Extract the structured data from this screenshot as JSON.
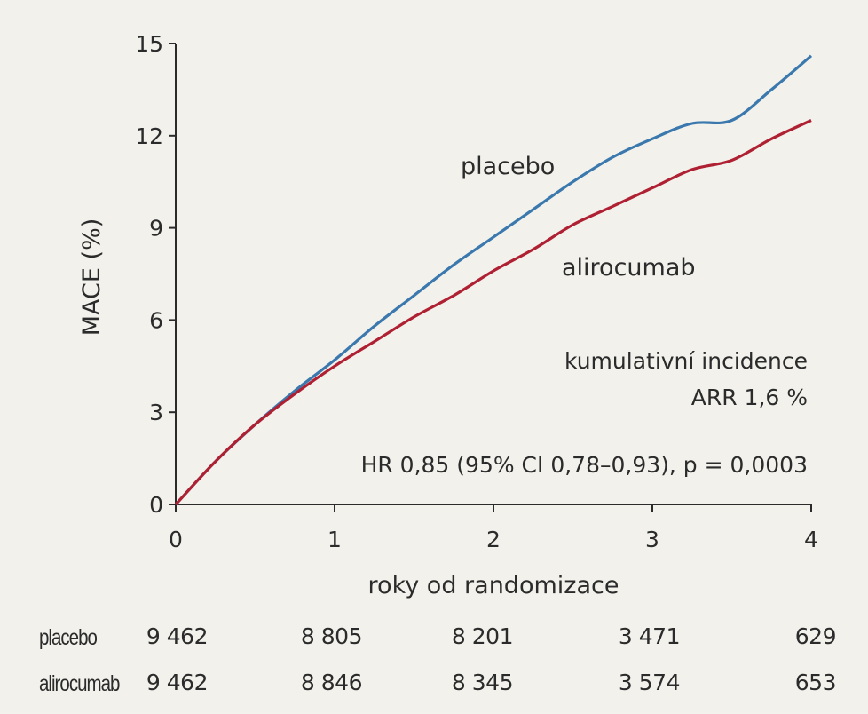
{
  "colors": {
    "background": "#f2f1ec",
    "placebo": "#3a78ad",
    "alirocumab": "#ae2032",
    "axis": "#2b2b2b"
  },
  "chart_data": {
    "type": "line",
    "xlabel": "roky od randomizace",
    "ylabel": "MACE (%)",
    "xlim": [
      0,
      4
    ],
    "ylim": [
      0,
      15
    ],
    "xticks": [
      0,
      1,
      2,
      3,
      4
    ],
    "yticks": [
      0,
      3,
      6,
      9,
      12,
      15
    ],
    "grid": false,
    "series": [
      {
        "name": "placebo",
        "x": [
          0,
          0.25,
          0.5,
          0.75,
          1,
          1.25,
          1.5,
          1.75,
          2,
          2.25,
          2.5,
          2.75,
          3,
          3.25,
          3.5,
          3.75,
          4
        ],
        "y": [
          0,
          1.4,
          2.6,
          3.7,
          4.7,
          5.8,
          6.8,
          7.8,
          8.7,
          9.6,
          10.5,
          11.3,
          11.9,
          12.4,
          12.5,
          13.5,
          14.6
        ]
      },
      {
        "name": "alirocumab",
        "x": [
          0,
          0.25,
          0.5,
          0.75,
          1,
          1.25,
          1.5,
          1.75,
          2,
          2.25,
          2.5,
          2.75,
          3,
          3.25,
          3.5,
          3.75,
          4
        ],
        "y": [
          0,
          1.4,
          2.6,
          3.6,
          4.5,
          5.3,
          6.1,
          6.8,
          7.6,
          8.3,
          9.1,
          9.7,
          10.3,
          10.9,
          11.2,
          11.9,
          12.5
        ]
      }
    ],
    "annotations": {
      "incidence": "kumulativní incidence",
      "arr": "ARR 1,6 %",
      "hr": "HR 0,85 (95% CI 0,78–0,93), p = 0,0003"
    },
    "tick_labels_y": [
      "0",
      "3",
      "6",
      "9",
      "12",
      "15"
    ],
    "tick_labels_x": [
      "0",
      "1",
      "2",
      "3",
      "4"
    ]
  },
  "risk_table": {
    "rows": [
      {
        "name": "placebo",
        "values": [
          "9 462",
          "8 805",
          "8 201",
          "3 471",
          "629"
        ]
      },
      {
        "name": "alirocumab",
        "values": [
          "9 462",
          "8 846",
          "8 345",
          "3 574",
          "653"
        ]
      }
    ]
  }
}
